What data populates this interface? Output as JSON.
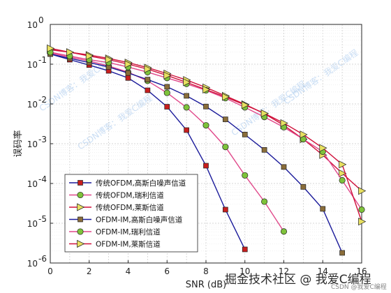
{
  "chart_data": {
    "type": "line",
    "title": "",
    "xlabel": "SNR (dB)",
    "ylabel": "误码率",
    "xlim": [
      0,
      16
    ],
    "ylim": [
      1e-06,
      1
    ],
    "yscale": "log",
    "x_ticks": [
      0,
      2,
      4,
      6,
      8,
      10,
      12,
      14,
      16
    ],
    "y_tick_bases": [
      "10",
      "10",
      "10",
      "10",
      "10",
      "10",
      "10"
    ],
    "y_tick_exps": [
      "0",
      "-1",
      "-2",
      "-3",
      "-4",
      "-5",
      "-6"
    ],
    "grid": true,
    "legend_position": "bottom-left",
    "series": [
      {
        "name": "传统OFDM,高斯白噪声信道",
        "line": "#1a1a9a",
        "marker": "square",
        "fill": "#c81e1e",
        "x": [
          0,
          1,
          2,
          3,
          4,
          5,
          6,
          7,
          8,
          9,
          10
        ],
        "y": [
          0.18,
          0.13,
          0.095,
          0.068,
          0.045,
          0.022,
          0.0085,
          0.0022,
          0.00028,
          2.2e-05,
          2.2e-06
        ]
      },
      {
        "name": "传统OFDM,瑞利信道",
        "line": "#e0488a",
        "marker": "circle",
        "fill": "#7ec23a",
        "x": [
          0,
          1,
          2,
          3,
          4,
          5,
          6,
          7,
          8,
          9,
          10,
          11,
          12
        ],
        "y": [
          0.19,
          0.15,
          0.12,
          0.09,
          0.063,
          0.038,
          0.019,
          0.0082,
          0.0029,
          0.00083,
          0.00016,
          3.5e-05,
          6.2e-06
        ]
      },
      {
        "name": "传统OFDM,莱斯信道",
        "line": "#d0103a",
        "marker": "triangle",
        "fill": "#e8e060",
        "x": [
          0,
          1,
          2,
          3,
          4,
          5,
          6,
          7,
          8,
          9,
          10,
          11,
          12,
          13,
          14,
          15,
          16
        ],
        "y": [
          0.23,
          0.2,
          0.17,
          0.14,
          0.11,
          0.082,
          0.058,
          0.04,
          0.026,
          0.016,
          0.0098,
          0.0057,
          0.0029,
          0.0013,
          0.00052,
          0.00018,
          6.5e-05
        ]
      },
      {
        "name": "OFDM-IM,高斯白噪声信道",
        "line": "#1a1a9a",
        "marker": "square",
        "fill": "#8a6d3a",
        "x": [
          0,
          1,
          2,
          3,
          4,
          5,
          6,
          7,
          8,
          9,
          10,
          11,
          12,
          13,
          14,
          15
        ],
        "y": [
          0.18,
          0.14,
          0.11,
          0.085,
          0.06,
          0.041,
          0.027,
          0.016,
          0.0086,
          0.0041,
          0.0017,
          0.0007,
          0.00026,
          8.2e-05,
          2.3e-05,
          1.8e-06
        ]
      },
      {
        "name": "OFDM-IM,瑞利信道",
        "line": "#e0488a",
        "marker": "circle",
        "fill": "#7ec23a",
        "x": [
          0,
          1,
          2,
          3,
          4,
          5,
          6,
          7,
          8,
          9,
          10,
          11,
          12,
          13,
          14,
          15,
          16
        ],
        "y": [
          0.2,
          0.16,
          0.13,
          0.11,
          0.085,
          0.063,
          0.045,
          0.032,
          0.022,
          0.014,
          0.0082,
          0.0047,
          0.0026,
          0.0013,
          0.00063,
          0.00012,
          2.2e-05
        ]
      },
      {
        "name": "OFDM-IM,莱斯信道",
        "line": "#d0103a",
        "marker": "triangle",
        "fill": "#e8e060",
        "x": [
          0,
          1,
          2,
          3,
          4,
          5,
          6,
          7,
          8,
          9,
          10,
          11,
          12,
          13,
          14,
          15,
          16
        ],
        "y": [
          0.25,
          0.2,
          0.16,
          0.13,
          0.1,
          0.075,
          0.052,
          0.035,
          0.023,
          0.015,
          0.0094,
          0.0058,
          0.0033,
          0.0017,
          0.00078,
          0.0003,
          1.1e-05
        ]
      }
    ]
  },
  "watermarks": [
    "CSDN博客：我爱C编程",
    "CSDN博客：我爱C编程",
    "CSDN博客：我爱C编程",
    "CSDN博客：我爱C编程"
  ],
  "footer": {
    "text": "掘金技术社区 @ 我爱C编程",
    "sub": "CSDN @我爱C编程"
  }
}
